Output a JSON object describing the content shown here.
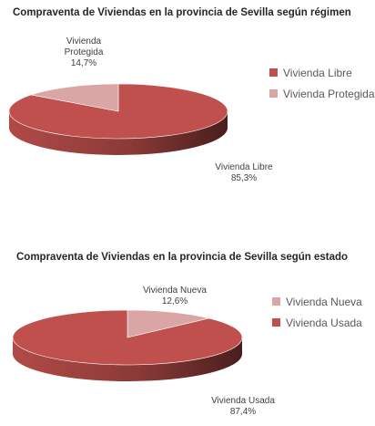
{
  "chart_data": [
    {
      "type": "pie",
      "title": "Compraventa de Viviendas en la provincia de Sevilla según régimen",
      "slices": [
        {
          "name": "Vivienda Libre",
          "value": 85.3,
          "value_label": "85,3%",
          "label_lines": [
            "Vivienda Libre"
          ],
          "color": "#c0504d"
        },
        {
          "name": "Vivienda Protegida",
          "value": 14.7,
          "value_label": "14,7%",
          "label_lines": [
            "Vivienda",
            "Protegida"
          ],
          "color": "#d9a6a5"
        }
      ],
      "legend": [
        "Vivienda Libre",
        "Vivienda Protegida"
      ],
      "legend_position": "right"
    },
    {
      "type": "pie",
      "title": "Compraventa de Viviendas en la provincia de Sevilla según estado",
      "slices": [
        {
          "name": "Vivienda Nueva",
          "value": 12.6,
          "value_label": "12,6%",
          "label_lines": [
            "Vivienda Nueva"
          ],
          "color": "#d9a6a5"
        },
        {
          "name": "Vivienda Usada",
          "value": 87.4,
          "value_label": "87,4%",
          "label_lines": [
            "Vivienda Usada"
          ],
          "color": "#c0504d"
        }
      ],
      "legend": [
        "Vivienda Nueva",
        "Vivienda Usada"
      ],
      "legend_position": "right"
    }
  ]
}
